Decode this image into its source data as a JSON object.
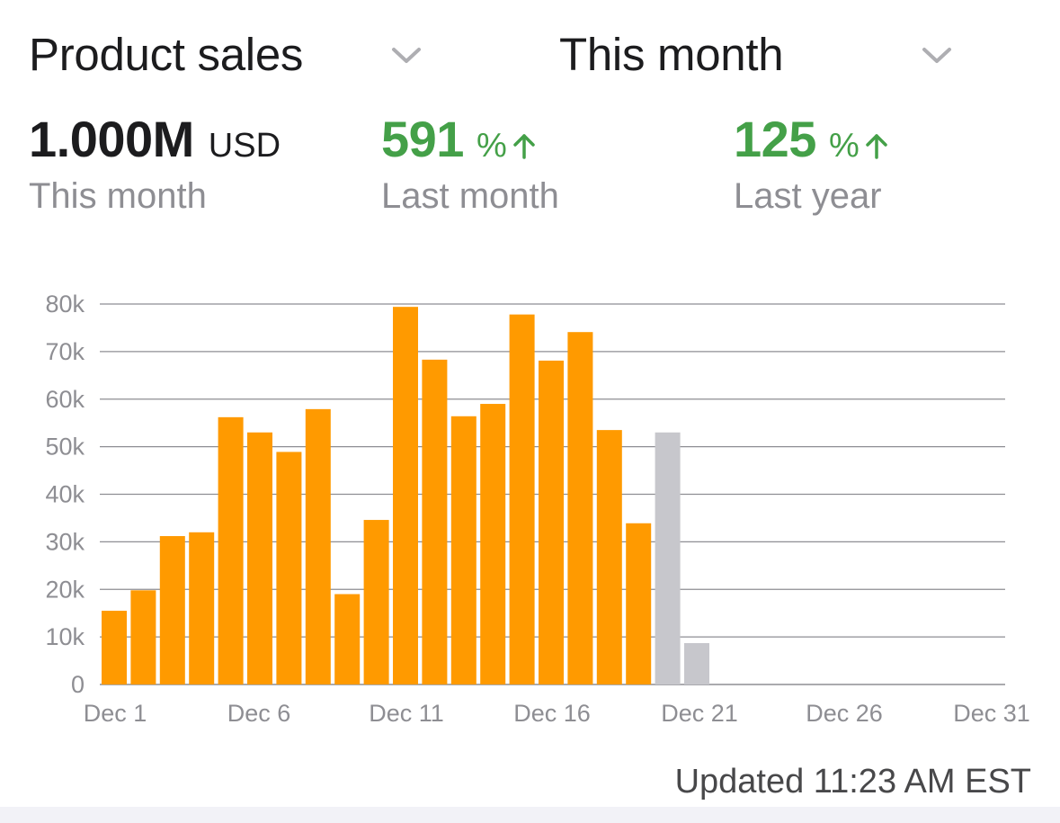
{
  "header": {
    "metric_selector": {
      "label": "Product sales",
      "icon": "chevron-down-icon"
    },
    "period_selector": {
      "label": "This month",
      "icon": "chevron-down-icon"
    }
  },
  "stats": {
    "total": {
      "value": "1.000M",
      "unit": "USD",
      "caption": "This month"
    },
    "last_month": {
      "value": "591",
      "unit": "%",
      "icon": "arrow-up-icon",
      "caption": "Last month"
    },
    "last_year": {
      "value": "125",
      "unit": "%",
      "icon": "arrow-up-icon",
      "caption": "Last year"
    }
  },
  "colors": {
    "actual_bar": "#ff9a00",
    "projected_bar": "#c7c7cc",
    "positive": "#44a048",
    "gridline": "#8e8e93"
  },
  "chart_data": {
    "type": "bar",
    "x": [
      1,
      2,
      3,
      4,
      5,
      6,
      7,
      8,
      9,
      10,
      11,
      12,
      13,
      14,
      15,
      16,
      17,
      18,
      19,
      20,
      21
    ],
    "series": [
      {
        "values": [
          15500,
          19800,
          31200,
          32000,
          56200,
          53000,
          48900,
          57900,
          19000,
          34600,
          79400,
          68300,
          56400,
          59000,
          77800,
          68100,
          74100,
          53500,
          33900,
          null,
          null
        ]
      },
      {
        "values": [
          null,
          null,
          null,
          null,
          null,
          null,
          null,
          null,
          null,
          null,
          null,
          null,
          null,
          null,
          null,
          null,
          null,
          null,
          null,
          53000,
          8700
        ]
      }
    ],
    "xlim": [
      1,
      31
    ],
    "ylim": [
      0,
      80000
    ],
    "yticks": [
      0,
      10000,
      20000,
      30000,
      40000,
      50000,
      60000,
      70000,
      80000
    ],
    "ytick_labels": [
      "0",
      "10k",
      "20k",
      "30k",
      "40k",
      "50k",
      "60k",
      "70k",
      "80k"
    ],
    "xticks": [
      1,
      6,
      11,
      16,
      21,
      26,
      31
    ],
    "xtick_labels": [
      "Dec 1",
      "Dec 6",
      "Dec 11",
      "Dec 16",
      "Dec 21",
      "Dec 26",
      "Dec 31"
    ],
    "grid": true
  },
  "footer": {
    "updated": "Updated 11:23 AM EST"
  }
}
